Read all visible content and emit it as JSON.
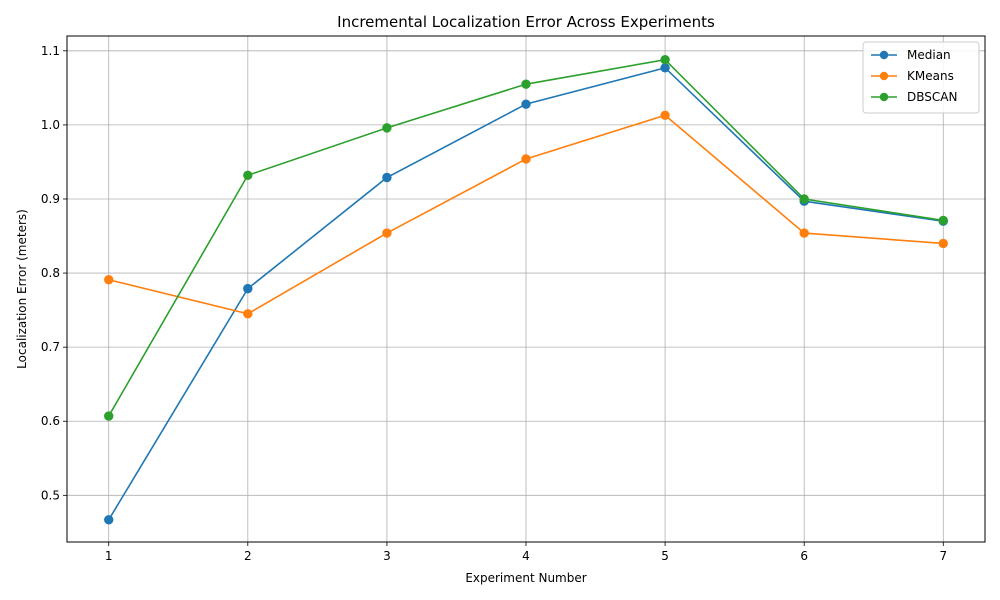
{
  "chart_data": {
    "type": "line",
    "title": "Incremental Localization Error Across Experiments",
    "xlabel": "Experiment Number",
    "ylabel": "Localization Error (meters)",
    "x": [
      1,
      2,
      3,
      4,
      5,
      6,
      7
    ],
    "xlim": [
      0.7,
      7.3
    ],
    "ylim": [
      0.437,
      1.12
    ],
    "xticks": [
      1,
      2,
      3,
      4,
      5,
      6,
      7
    ],
    "yticks": [
      0.5,
      0.6,
      0.7,
      0.8,
      0.9,
      1.0,
      1.1
    ],
    "ytick_labels": [
      "0.5",
      "0.6",
      "0.7",
      "0.8",
      "0.9",
      "1.0",
      "1.1"
    ],
    "grid": true,
    "legend_position": "top-right",
    "series": [
      {
        "name": "Median",
        "color": "#1f77b4",
        "marker": "circle",
        "values": [
          0.467,
          0.779,
          0.929,
          1.028,
          1.077,
          0.897,
          0.87
        ]
      },
      {
        "name": "KMeans",
        "color": "#ff7f0e",
        "marker": "circle",
        "values": [
          0.791,
          0.745,
          0.854,
          0.954,
          1.013,
          0.854,
          0.84
        ]
      },
      {
        "name": "DBSCAN",
        "color": "#2ca02c",
        "marker": "circle",
        "values": [
          0.607,
          0.932,
          0.996,
          1.055,
          1.088,
          0.9,
          0.871
        ]
      }
    ]
  }
}
